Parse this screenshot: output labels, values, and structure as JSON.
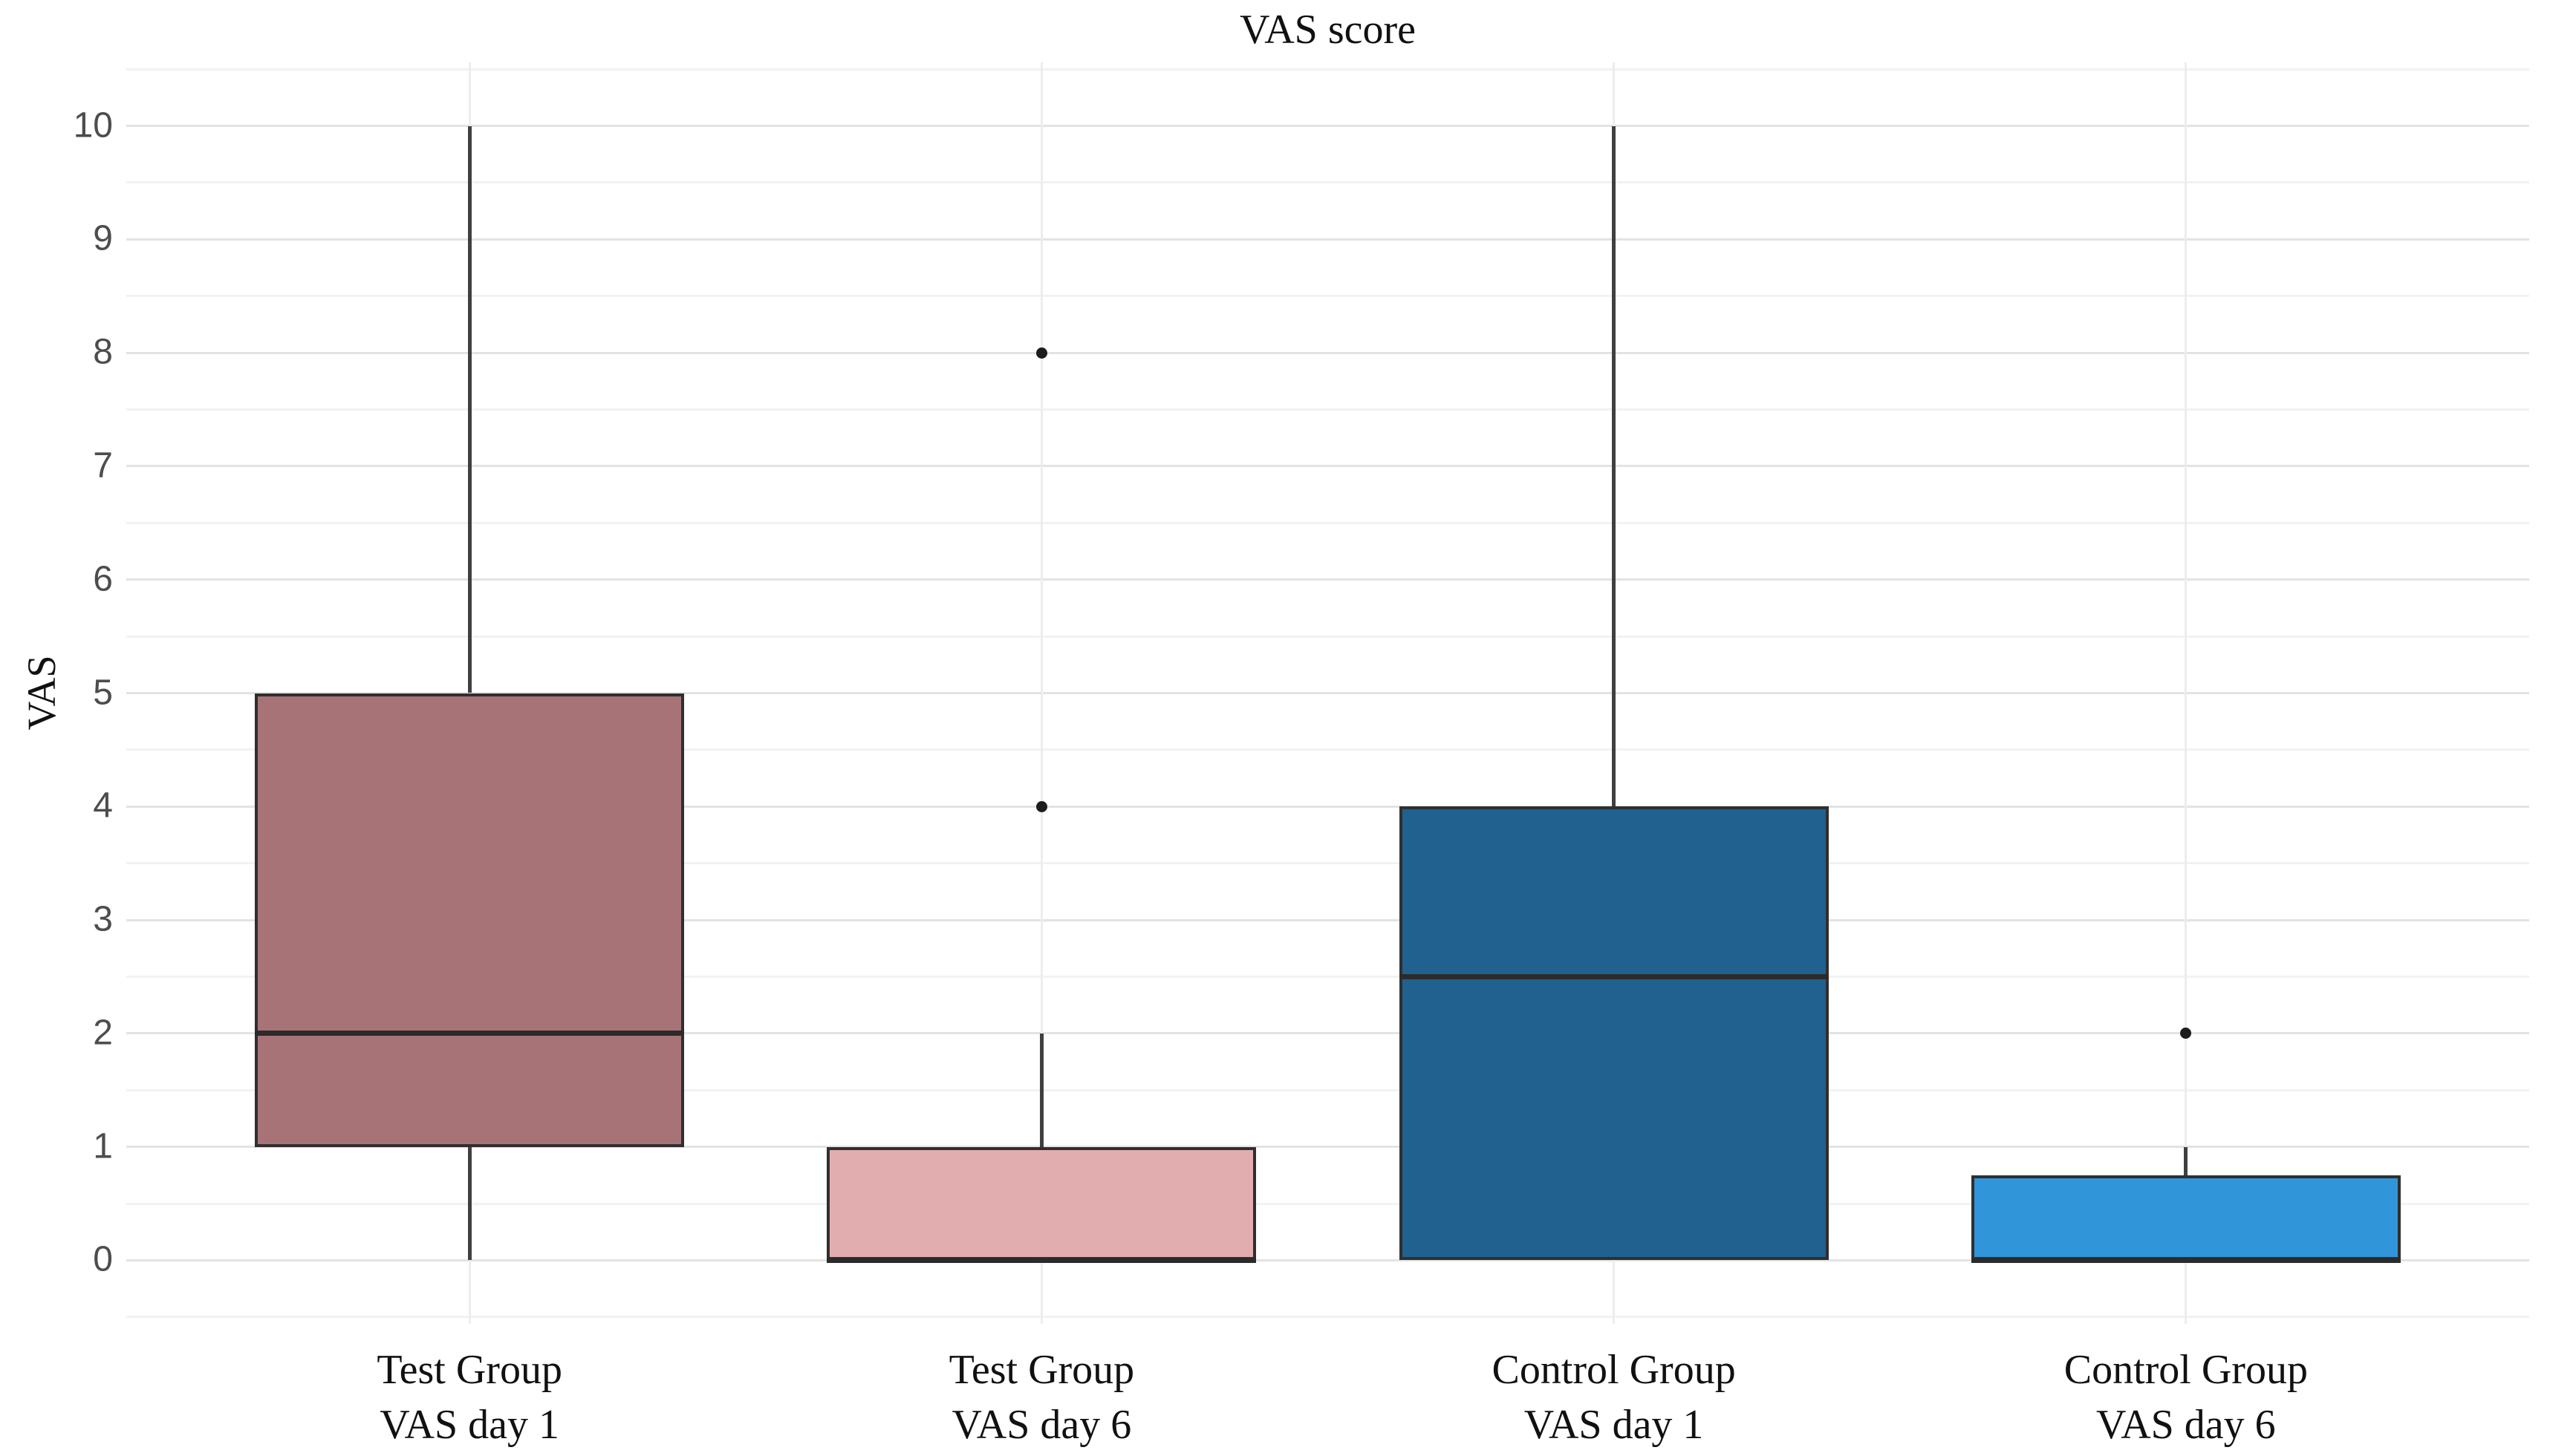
{
  "chart_data": {
    "type": "boxplot",
    "title": "VAS score",
    "xlabel": "",
    "ylabel": "VAS",
    "yticks": [
      0,
      1,
      2,
      3,
      4,
      5,
      6,
      7,
      8,
      9,
      10
    ],
    "ylim": [
      -0.56,
      10.56
    ],
    "grid": {
      "major_horizontal": true,
      "minor_horizontal": true,
      "vertical_at_categories": true
    },
    "legend_position": "none",
    "categories": [
      "Test Group VAS day 1",
      "Test Group VAS day 6",
      "Control Group VAS day 1",
      "Control Group VAS day 6"
    ],
    "boxes": [
      {
        "label_lines": [
          "Test Group",
          "VAS day 1"
        ],
        "q1": 1,
        "median": 2,
        "q3": 5,
        "whisker_low": 0,
        "whisker_high": 10,
        "outliers": [],
        "fill": "#a87377"
      },
      {
        "label_lines": [
          "Test Group",
          "VAS day 6"
        ],
        "q1": 0,
        "median": 0,
        "q3": 1,
        "whisker_low": 0,
        "whisker_high": 2,
        "outliers": [
          4,
          8
        ],
        "fill": "#e2adae"
      },
      {
        "label_lines": [
          "Control Group",
          "VAS day 1"
        ],
        "q1": 0,
        "median": 2.5,
        "q3": 4,
        "whisker_low": 0,
        "whisker_high": 10,
        "outliers": [],
        "fill": "#20618f"
      },
      {
        "label_lines": [
          "Control Group",
          "VAS day 6"
        ],
        "q1": 0,
        "median": 0,
        "q3": 0.75,
        "whisker_low": 0,
        "whisker_high": 1,
        "outliers": [
          2
        ],
        "fill": "#3095d9"
      }
    ],
    "layout_hints": {
      "category_padding_units": 0.6,
      "box_width_fraction_of_slot": 0.75
    },
    "colors": {
      "box_border": "#2f2f2f",
      "median_line": "#2b2b2b",
      "whisker": "#404040",
      "outlier_point": "#1c1c1c",
      "tick_text": "#4d4d4d",
      "title_text": "#111111",
      "background": "#ffffff"
    }
  }
}
